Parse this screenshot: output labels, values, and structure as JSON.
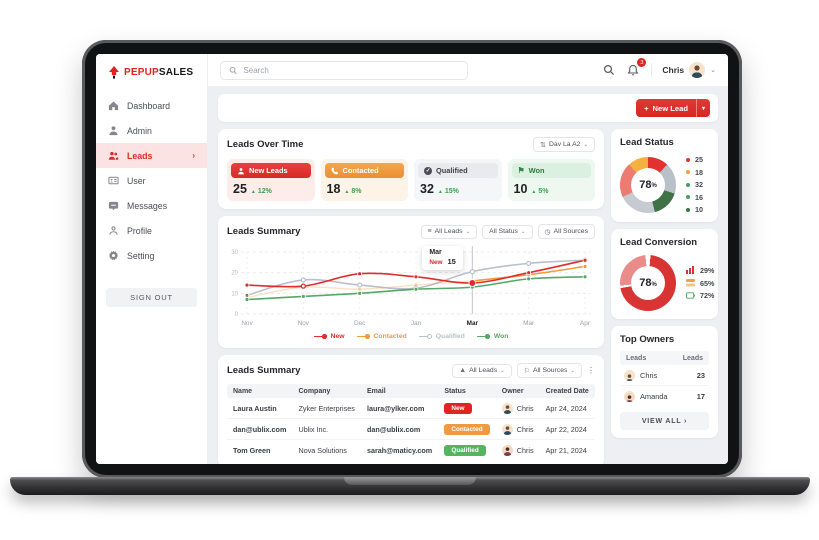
{
  "colors": {
    "primary_red": "#df2c2c",
    "orange": "#f09a3a",
    "green": "#55a868",
    "gray_line": "#b9c0cb"
  },
  "sidebar": {
    "brand": {
      "part1": "PEPUP",
      "part2": "SALES"
    },
    "items": [
      {
        "label": "Dashboard"
      },
      {
        "label": "Admin"
      },
      {
        "label": "Leads"
      },
      {
        "label": "User"
      },
      {
        "label": "Messages"
      },
      {
        "label": "Profile"
      },
      {
        "label": "Setting"
      }
    ],
    "active_item": "Leads",
    "sign_out": "SIGN OUT"
  },
  "topbar": {
    "search_placeholder": "Search",
    "notification_count": "3",
    "user_name": "Chris"
  },
  "action_bar": {
    "plus": "+",
    "new_lead_label": "New Lead",
    "caret": "▾"
  },
  "leads_over_time": {
    "title": "Leads Over Time",
    "range_label": "Dav La A2",
    "stats": [
      {
        "label": "New Leads",
        "value": "25",
        "delta": "12%"
      },
      {
        "label": "Contacted",
        "value": "18",
        "delta": "8%"
      },
      {
        "label": "Qualified",
        "value": "32",
        "delta": "15%"
      },
      {
        "label": "Won",
        "value": "10",
        "delta": "5%"
      }
    ]
  },
  "chart_card": {
    "title": "Leads Summary",
    "filter_leads": "All Leads",
    "filter_status": "All Status",
    "filter_sources": "All Sources",
    "tooltip": {
      "title": "Mar",
      "series": "New",
      "value": "15"
    }
  },
  "chart_data": {
    "type": "line",
    "title": "Leads Summary",
    "categories": [
      "Nov",
      "Nov",
      "Dec",
      "Jan",
      "Mar",
      "Mar",
      "Apr"
    ],
    "highlight_index": 4,
    "ylim": [
      0,
      30
    ],
    "yticks": [
      0,
      10,
      20,
      30
    ],
    "grid": true,
    "legend_position": "bottom",
    "series": [
      {
        "name": "New",
        "color": "#df2c2c",
        "values": [
          14,
          13.5,
          19.5,
          18,
          15,
          20,
          26
        ]
      },
      {
        "name": "Contacted",
        "color": "#f09a3a",
        "values": [
          8,
          13,
          12,
          14,
          16,
          19,
          23
        ],
        "faded_before_highlight": true
      },
      {
        "name": "Qualified",
        "color": "#b9c0cb",
        "values": [
          9,
          16.5,
          14,
          12.5,
          20.5,
          24.5,
          26
        ]
      },
      {
        "name": "Won",
        "color": "#55a868",
        "values": [
          7,
          8.5,
          10,
          12,
          13,
          17,
          18
        ]
      }
    ],
    "tooltip": {
      "category": "Mar",
      "series": "New",
      "value": 15
    }
  },
  "table_card": {
    "title": "Leads Summary",
    "filter_leads": "All Leads",
    "filter_sources": "All Sources",
    "columns": [
      "Name",
      "Company",
      "Email",
      "Status",
      "Owner",
      "Created Date"
    ],
    "rows": [
      {
        "name": "Laura Austin",
        "company": "Zyker Enterprises",
        "email": "laura@ylker.com",
        "status": "New",
        "owner": "Chris",
        "date": "Apr 24, 2024"
      },
      {
        "name": "dan@ublix.com",
        "company": "Ublix Inc.",
        "email": "dan@ublix.com",
        "status": "Contacted",
        "owner": "Chris",
        "date": "Apr 22, 2024"
      },
      {
        "name": "Tom Green",
        "company": "Nova Solutions",
        "email": "sarah@maticy.com",
        "status": "Qualified",
        "owner": "Chris",
        "date": "Apr 21, 2024"
      }
    ]
  },
  "lead_status": {
    "title": "Lead Status",
    "center_value": "78",
    "center_unit": "%",
    "legend": [
      {
        "value": "25",
        "color": "#e23230"
      },
      {
        "value": "18",
        "color": "#f0a13e"
      },
      {
        "value": "32",
        "color": "#4a9d5f"
      },
      {
        "value": "16",
        "color": "#4a9d5f"
      },
      {
        "value": "10",
        "color": "#357844"
      }
    ]
  },
  "lead_conversion": {
    "title": "Lead Conversion",
    "center_value": "78",
    "center_unit": "%",
    "legend": [
      {
        "value": "29%",
        "icon": "bar-chart-icon",
        "color": "#d93434"
      },
      {
        "value": "65%",
        "icon": "coins-icon",
        "color": "#f0a13e"
      },
      {
        "value": "72%",
        "icon": "battery-icon",
        "color": "#4aa75e"
      }
    ]
  },
  "top_owners": {
    "title": "Top Owners",
    "col_left": "Leads",
    "col_right": "Leads",
    "rows": [
      {
        "name": "Chris",
        "count": "23"
      },
      {
        "name": "Amanda",
        "count": "17"
      }
    ],
    "view_all": "VIEW ALL ›"
  }
}
